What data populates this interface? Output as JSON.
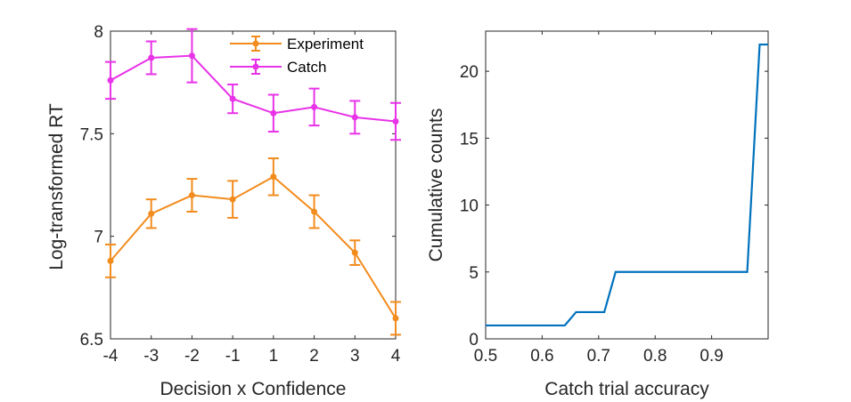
{
  "chart_data": [
    {
      "type": "line",
      "xlabel": "Decision x Confidence",
      "ylabel": "Log-transformed RT",
      "x": [
        -4,
        -3,
        -2,
        -1,
        1,
        2,
        3,
        4
      ],
      "xticks": [
        -4,
        -3,
        -2,
        -1,
        1,
        2,
        3,
        4
      ],
      "xtick_labels": [
        "-4",
        "-3",
        "-2",
        "-1",
        "1",
        "2",
        "3",
        "4"
      ],
      "yticks": [
        6.5,
        7,
        7.5,
        8
      ],
      "ytick_labels": [
        "6.5",
        "7",
        "7.5",
        "8"
      ],
      "ylim": [
        6.5,
        8
      ],
      "legend_position": "top-right",
      "series": [
        {
          "name": "Experiment",
          "color": "#F28C1E",
          "values": [
            6.88,
            7.11,
            7.2,
            7.18,
            7.29,
            7.12,
            6.92,
            6.6
          ],
          "error": [
            0.08,
            0.07,
            0.08,
            0.09,
            0.09,
            0.08,
            0.06,
            0.08
          ]
        },
        {
          "name": "Catch",
          "color": "#E833E8",
          "values": [
            7.76,
            7.87,
            7.88,
            7.67,
            7.6,
            7.63,
            7.58,
            7.56
          ],
          "error": [
            0.09,
            0.08,
            0.13,
            0.07,
            0.09,
            0.09,
            0.08,
            0.09
          ]
        }
      ]
    },
    {
      "type": "line",
      "xlabel": "Catch trial accuracy",
      "ylabel": "Cumulative counts",
      "xlim": [
        0.5,
        1.0
      ],
      "ylim": [
        0,
        23
      ],
      "xticks": [
        0.5,
        0.6,
        0.7,
        0.8,
        0.9
      ],
      "xtick_labels": [
        "0.5",
        "0.6",
        "0.7",
        "0.8",
        "0.9"
      ],
      "yticks": [
        0,
        5,
        10,
        15,
        20
      ],
      "ytick_labels": [
        "0",
        "5",
        "10",
        "15",
        "20"
      ],
      "series": [
        {
          "color": "#0072BD",
          "x": [
            0.5,
            0.64,
            0.66,
            0.71,
            0.73,
            0.963,
            0.985,
            1.0
          ],
          "values": [
            1,
            1,
            2,
            2,
            5,
            5,
            22,
            22
          ]
        }
      ]
    }
  ]
}
